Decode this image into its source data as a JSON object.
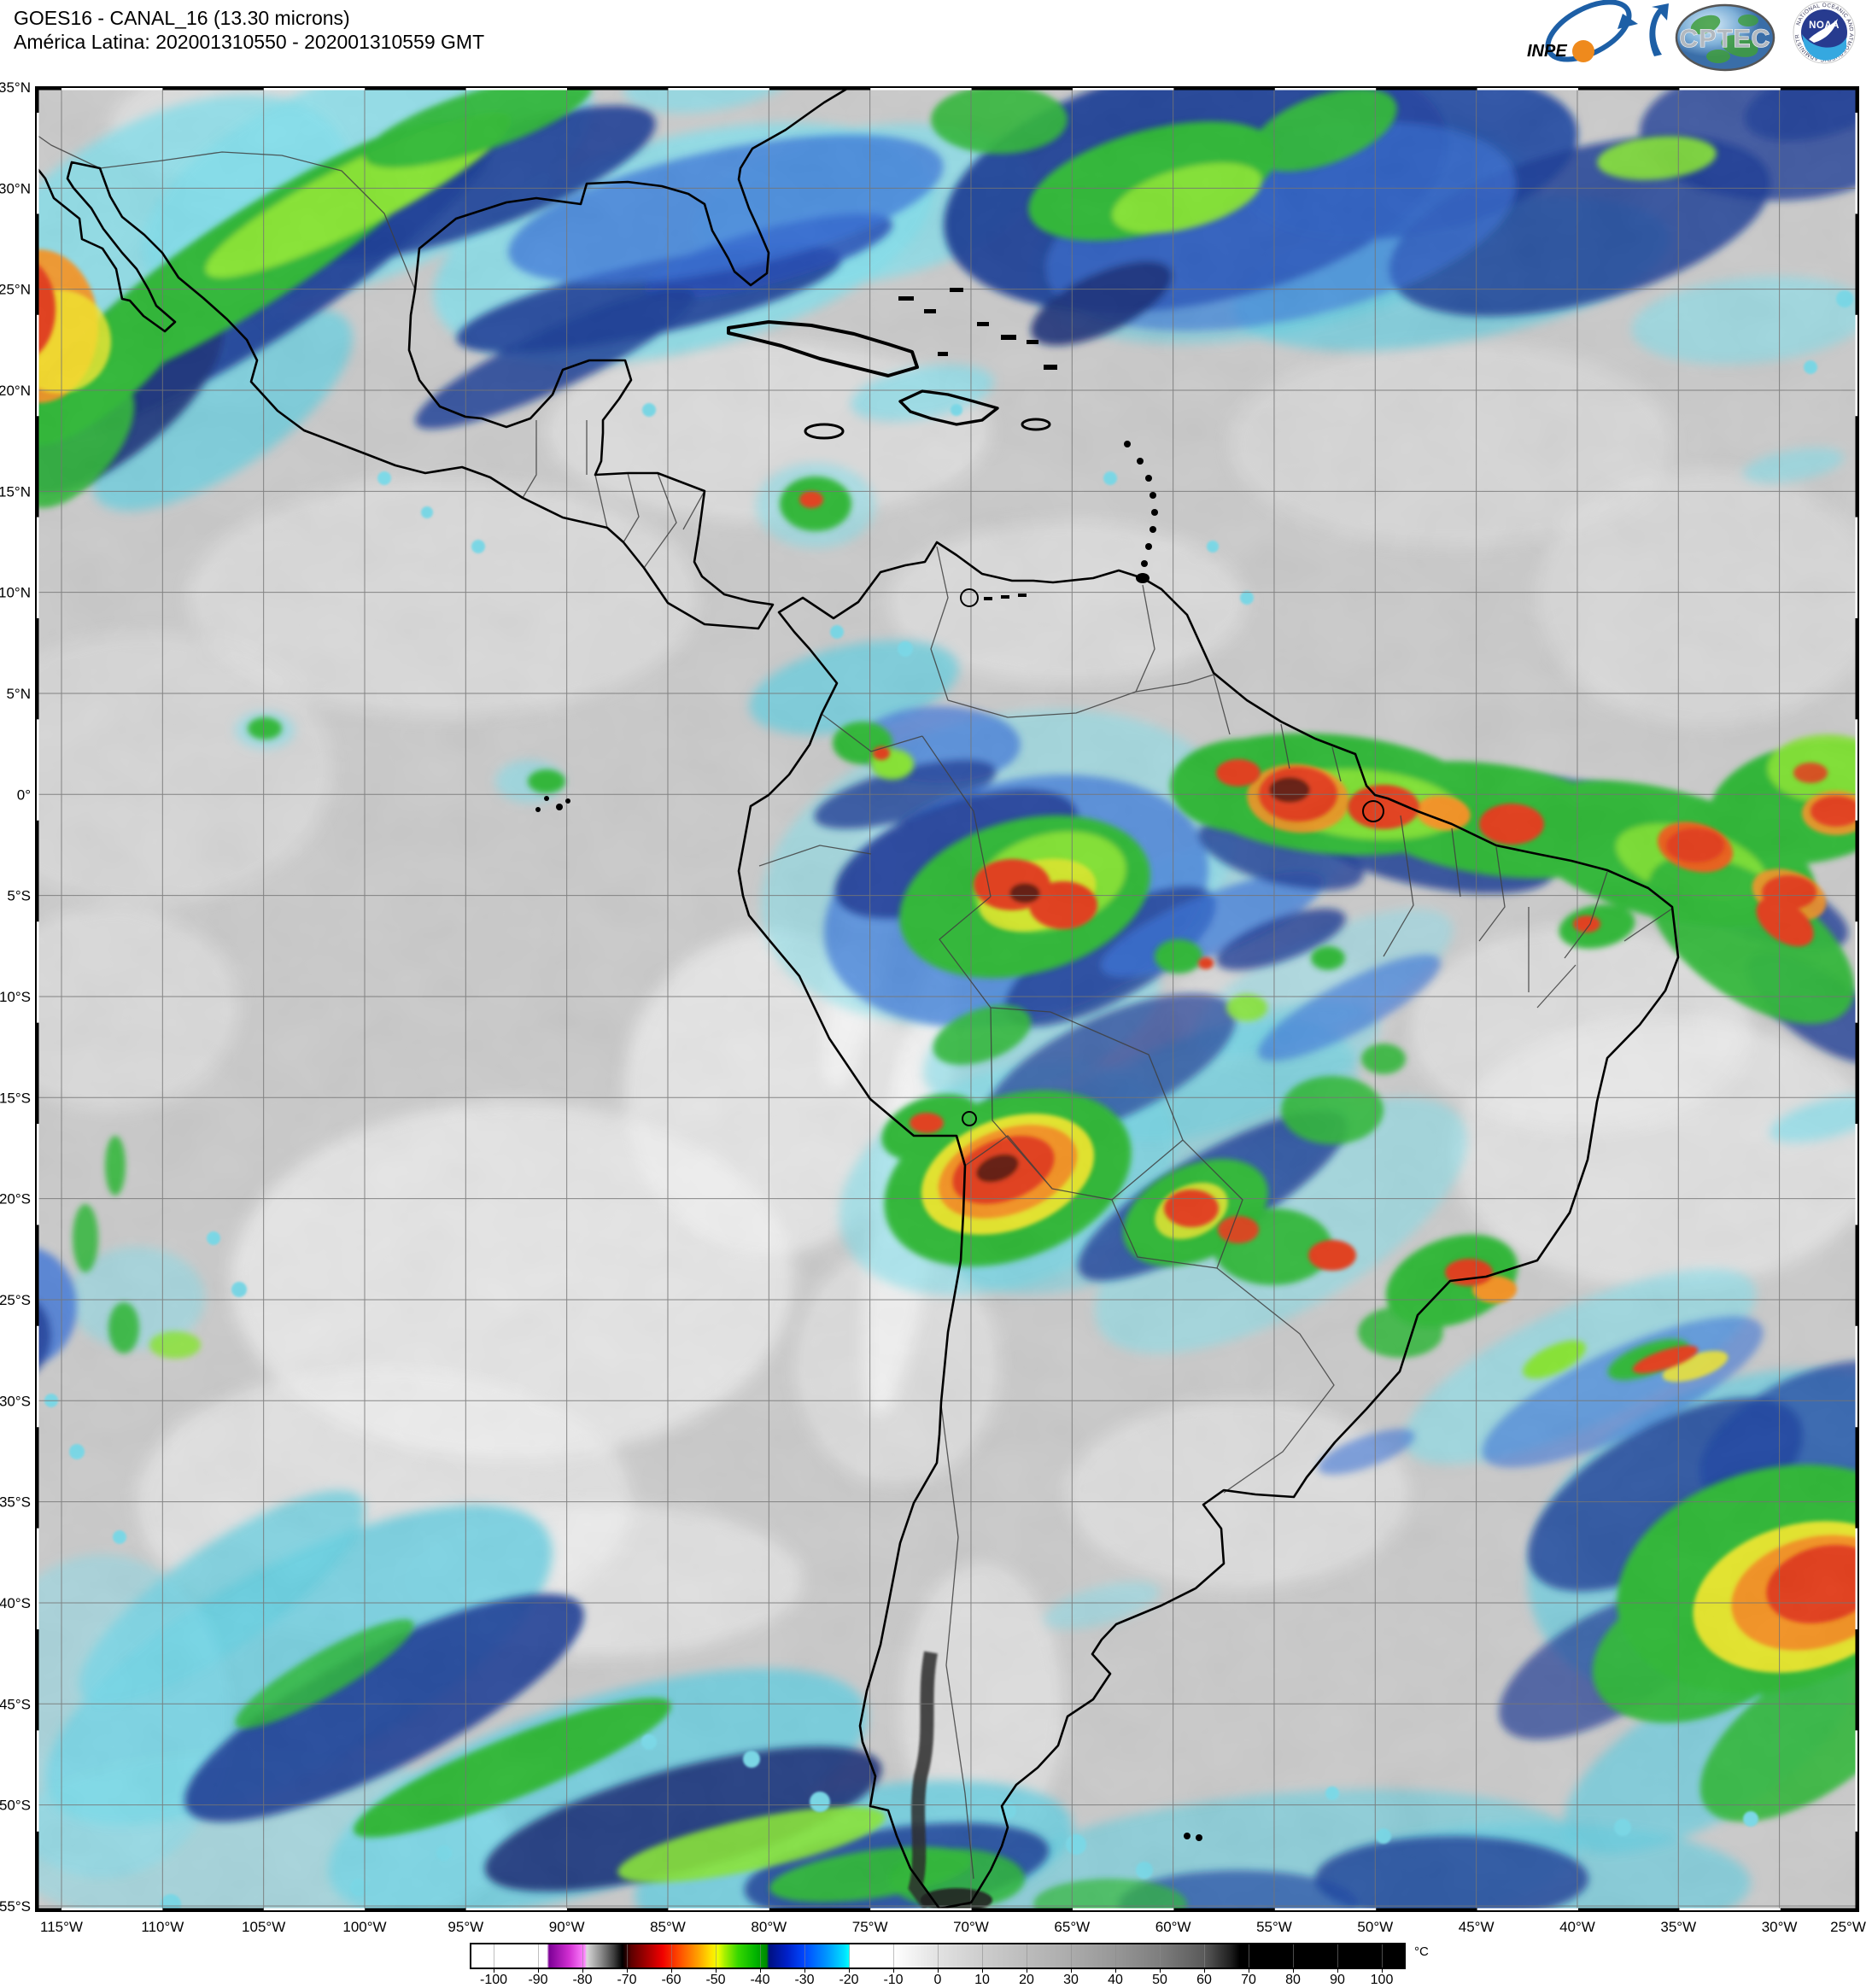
{
  "header": {
    "title_line1": "GOES16 - CANAL_16 (13.30 microns)",
    "title_line2": "América Latina: 202001310550 - 202001310559 GMT",
    "logos": {
      "inpe_label": "INPE",
      "cptec_label": "CPTEC",
      "noaa_label": "NOAA",
      "noaa_ring_text": "NATIONAL OCEANIC AND ATMOSPHERIC ADMINISTRATION"
    }
  },
  "map": {
    "lat_labels": [
      "35°N",
      "30°N",
      "25°N",
      "20°N",
      "15°N",
      "10°N",
      "5°N",
      "0°",
      "5°S",
      "10°S",
      "15°S",
      "20°S",
      "25°S",
      "30°S",
      "35°S",
      "40°S",
      "45°S",
      "50°S",
      "55°S"
    ],
    "lon_labels": [
      "115°W",
      "110°W",
      "105°W",
      "100°W",
      "95°W",
      "90°W",
      "85°W",
      "80°W",
      "75°W",
      "70°W",
      "65°W",
      "60°W",
      "55°W",
      "50°W",
      "45°W",
      "40°W",
      "35°W",
      "30°W",
      "25°W"
    ]
  },
  "colorbar": {
    "unit": "°C",
    "range": [
      -105,
      105
    ],
    "ticks": [
      -100,
      -90,
      -80,
      -70,
      -60,
      -50,
      -40,
      -30,
      -20,
      -10,
      0,
      10,
      20,
      30,
      40,
      50,
      60,
      70,
      80,
      90,
      100
    ],
    "stops": [
      {
        "v": -105,
        "c": "#ffffff"
      },
      {
        "v": -88,
        "c": "#ffffff"
      },
      {
        "v": -87.5,
        "c": "#7d0096"
      },
      {
        "v": -83,
        "c": "#d12fd1"
      },
      {
        "v": -79.5,
        "c": "#ff85ff"
      },
      {
        "v": -79,
        "c": "#d8d8d8"
      },
      {
        "v": -76,
        "c": "#909090"
      },
      {
        "v": -73,
        "c": "#404040"
      },
      {
        "v": -71,
        "c": "#000000"
      },
      {
        "v": -69,
        "c": "#5e0000"
      },
      {
        "v": -65,
        "c": "#b00000"
      },
      {
        "v": -62,
        "c": "#f00000"
      },
      {
        "v": -58,
        "c": "#ff5000"
      },
      {
        "v": -54,
        "c": "#ffa000"
      },
      {
        "v": -51,
        "c": "#ffe400"
      },
      {
        "v": -49.5,
        "c": "#f0ff00"
      },
      {
        "v": -48,
        "c": "#a8f000"
      },
      {
        "v": -45,
        "c": "#38d800"
      },
      {
        "v": -41,
        "c": "#00b400"
      },
      {
        "v": -38.5,
        "c": "#008800"
      },
      {
        "v": -38,
        "c": "#001080"
      },
      {
        "v": -34,
        "c": "#0020c8"
      },
      {
        "v": -30,
        "c": "#0048ff"
      },
      {
        "v": -25,
        "c": "#0096ff"
      },
      {
        "v": -21,
        "c": "#00e0ff"
      },
      {
        "v": -20,
        "c": "#00ffff"
      },
      {
        "v": -19.8,
        "c": "#ffffff"
      },
      {
        "v": -10,
        "c": "#ffffff"
      },
      {
        "v": 0,
        "c": "#e2e2e2"
      },
      {
        "v": 10,
        "c": "#cdcdcd"
      },
      {
        "v": 20,
        "c": "#bcbcbc"
      },
      {
        "v": 30,
        "c": "#ababab"
      },
      {
        "v": 40,
        "c": "#979797"
      },
      {
        "v": 50,
        "c": "#7e7e7e"
      },
      {
        "v": 60,
        "c": "#5a5a5a"
      },
      {
        "v": 66,
        "c": "#1e1e1e"
      },
      {
        "v": 68,
        "c": "#000000"
      },
      {
        "v": 105,
        "c": "#000000"
      }
    ]
  }
}
